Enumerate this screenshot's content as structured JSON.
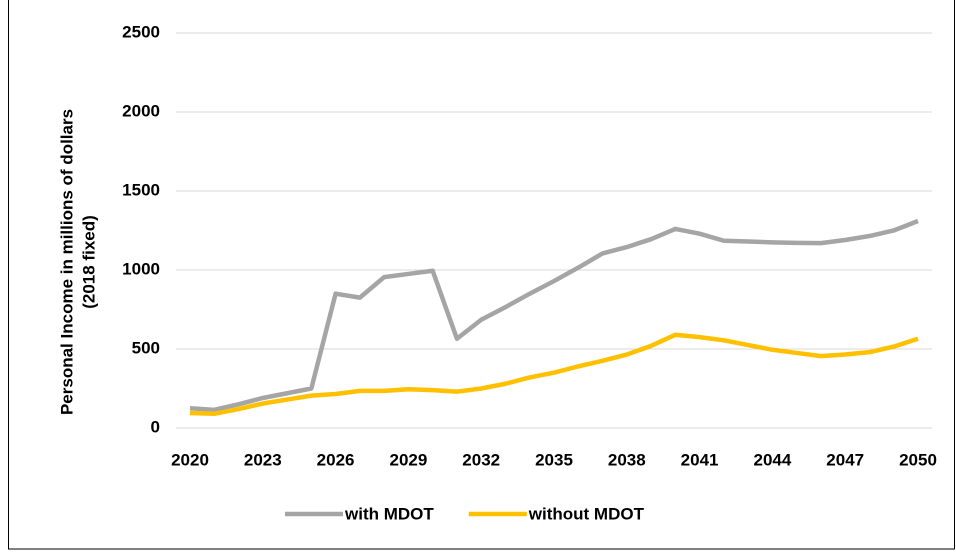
{
  "chart_data": {
    "type": "line",
    "ylabel": [
      "Personal Income in millions of dollars",
      "(2018 fixed)"
    ],
    "x": [
      2020,
      2021,
      2022,
      2023,
      2024,
      2025,
      2026,
      2027,
      2028,
      2029,
      2030,
      2031,
      2032,
      2033,
      2034,
      2035,
      2036,
      2037,
      2038,
      2039,
      2040,
      2041,
      2042,
      2043,
      2044,
      2045,
      2046,
      2047,
      2048,
      2049,
      2050
    ],
    "series": [
      {
        "name": "with MDOT",
        "color": "#a5a5a5",
        "values": [
          125,
          115,
          150,
          190,
          220,
          250,
          850,
          825,
          955,
          975,
          995,
          565,
          685,
          765,
          850,
          930,
          1015,
          1105,
          1145,
          1195,
          1260,
          1230,
          1185,
          1180,
          1175,
          1172,
          1170,
          1190,
          1215,
          1250,
          1310
        ]
      },
      {
        "name": "without MDOT",
        "color": "#ffc000",
        "values": [
          95,
          90,
          120,
          155,
          180,
          205,
          215,
          235,
          235,
          245,
          240,
          230,
          250,
          280,
          320,
          350,
          390,
          425,
          465,
          520,
          590,
          575,
          555,
          525,
          495,
          475,
          455,
          465,
          480,
          515,
          565
        ]
      }
    ],
    "xlim": [
      2020,
      2050
    ],
    "xticks": [
      2020,
      2023,
      2026,
      2029,
      2032,
      2035,
      2038,
      2041,
      2044,
      2047,
      2050
    ],
    "ylim": [
      0,
      2500
    ],
    "yticks": [
      0,
      500,
      1000,
      1500,
      2000,
      2500
    ],
    "grid": true,
    "legend": "bottom"
  }
}
